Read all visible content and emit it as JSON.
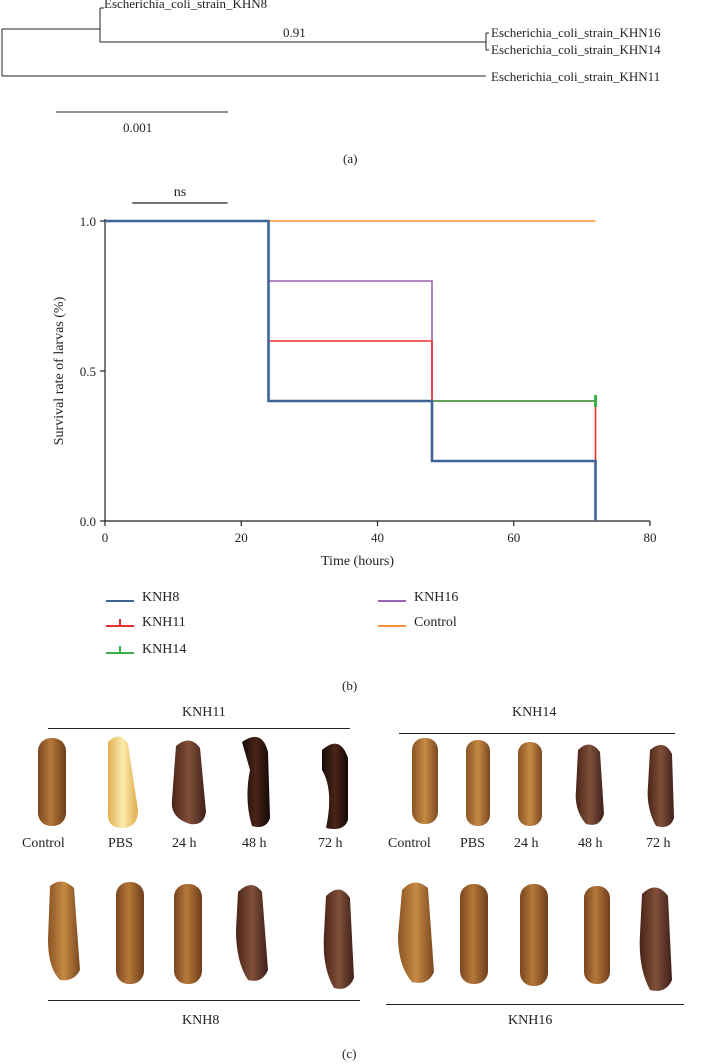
{
  "panel_a": {
    "caption": "(a)",
    "leaves": {
      "khn8": "Escherichia_coli_strain_KHN8",
      "khn16": "Escherichia_coli_strain_KHN16",
      "khn14": "Escherichia_coli_strain_KHN14",
      "khn11": "Escherichia_coli_strain_KHN11"
    },
    "bootstrap": "0.91",
    "scale_label": "0.001"
  },
  "panel_b": {
    "caption": "(b)",
    "significance": "ns",
    "legend": [
      {
        "key": "knh8",
        "label": "KNH8",
        "color": "#3e6496"
      },
      {
        "key": "knh11",
        "label": "KNH11",
        "color": "#e8302a"
      },
      {
        "key": "knh14",
        "label": "KNH14",
        "color": "#3bb34a"
      },
      {
        "key": "knh16",
        "label": "KNH16",
        "color": "#9b62b5"
      },
      {
        "key": "control",
        "label": "Control",
        "color": "#f0913a"
      }
    ]
  },
  "chart_data": {
    "type": "line",
    "step": true,
    "xlabel": "Time (hours)",
    "ylabel": "Survival rate of larvas (%)",
    "xlim": [
      0,
      80
    ],
    "ylim": [
      0,
      1.0
    ],
    "xticks": [
      0,
      20,
      40,
      60,
      80
    ],
    "yticks": [
      0.0,
      0.5,
      1.0
    ],
    "xtick_labels": [
      "0",
      "20",
      "40",
      "60",
      "80"
    ],
    "ytick_labels": [
      "0.0",
      "0.5",
      "1.0"
    ],
    "series": [
      {
        "name": "KNH8",
        "x": [
          0,
          24,
          24,
          48,
          48,
          72,
          72
        ],
        "y": [
          1.0,
          1.0,
          0.4,
          0.4,
          0.2,
          0.2,
          0.0
        ],
        "color": "#3e6496"
      },
      {
        "name": "KNH11",
        "x": [
          0,
          24,
          24,
          48,
          48,
          72,
          72
        ],
        "y": [
          1.0,
          1.0,
          0.6,
          0.6,
          0.4,
          0.4,
          0.2
        ],
        "color": "#e8302a"
      },
      {
        "name": "KNH14",
        "x": [
          0,
          24,
          24,
          72
        ],
        "y": [
          1.0,
          1.0,
          0.4,
          0.4
        ],
        "color": "#3bb34a"
      },
      {
        "name": "KNH16",
        "x": [
          0,
          24,
          24,
          48,
          48,
          72
        ],
        "y": [
          1.0,
          1.0,
          0.8,
          0.8,
          0.4,
          0.4
        ],
        "color": "#9b62b5"
      },
      {
        "name": "Control",
        "x": [
          0,
          72
        ],
        "y": [
          1.0,
          1.0
        ],
        "color": "#f0913a"
      }
    ],
    "annotations": [
      {
        "text": "ns",
        "x_range": [
          4,
          18
        ],
        "y": 1.06
      }
    ]
  },
  "panel_c": {
    "caption": "(c)",
    "group_knh11": "KNH11",
    "group_knh14": "KNH14",
    "group_knh8": "KNH8",
    "group_knh16": "KNH16",
    "columns_left": [
      "Control",
      "PBS",
      "24 h",
      "48 h",
      "72 h"
    ],
    "columns_right": [
      "Control",
      "PBS",
      "24 h",
      "48 h",
      "72 h"
    ],
    "colors": {
      "larva_brown": "#9a6232",
      "larva_pbs": "#f2d27a",
      "larva_dark": "#6b3d2c",
      "larva_black": "#2a1410"
    }
  }
}
